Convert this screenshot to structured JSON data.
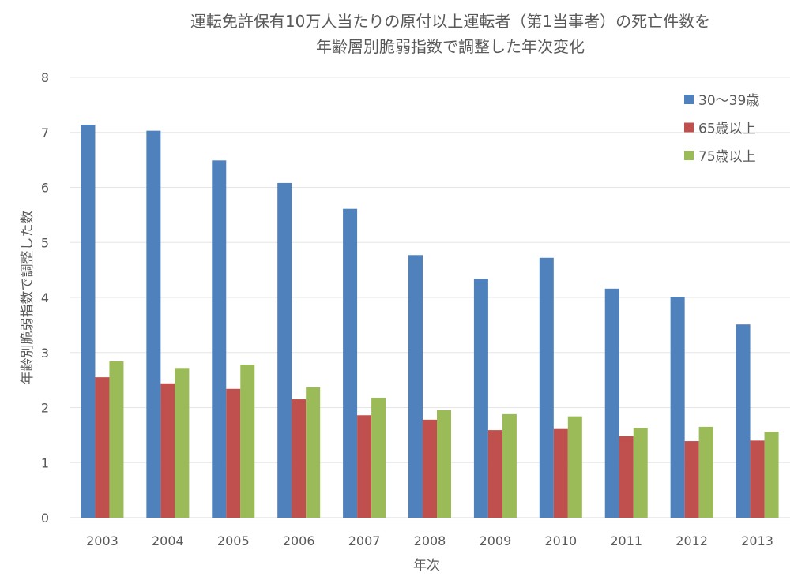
{
  "chart_data": {
    "type": "bar",
    "title": [
      "運転免許保有10万人当たりの原付以上運転者（第1当事者）の死亡件数を",
      "年齢層別脆弱指数で調整した年次変化"
    ],
    "xlabel": "年次",
    "ylabel": "年齢別脆弱指数で調整した数",
    "ylim": [
      0,
      8
    ],
    "yticks": [
      "0",
      "1",
      "2",
      "3",
      "4",
      "5",
      "6",
      "7",
      "8"
    ],
    "grid": true,
    "legend_position": "top-right",
    "categories": [
      "2003",
      "2004",
      "2005",
      "2006",
      "2007",
      "2008",
      "2009",
      "2010",
      "2011",
      "2012",
      "2013"
    ],
    "series": [
      {
        "name": "30〜39歳",
        "color": "#4F81BD",
        "values": [
          7.14,
          7.03,
          6.49,
          6.08,
          5.61,
          4.77,
          4.34,
          4.72,
          4.16,
          4.01,
          3.51
        ]
      },
      {
        "name": "65歳以上",
        "color": "#C0504D",
        "values": [
          2.55,
          2.44,
          2.34,
          2.15,
          1.86,
          1.78,
          1.59,
          1.61,
          1.48,
          1.39,
          1.4
        ]
      },
      {
        "name": "75歳以上",
        "color": "#9BBB59",
        "values": [
          2.84,
          2.72,
          2.78,
          2.37,
          2.18,
          1.95,
          1.88,
          1.84,
          1.63,
          1.65,
          1.56
        ]
      }
    ]
  }
}
